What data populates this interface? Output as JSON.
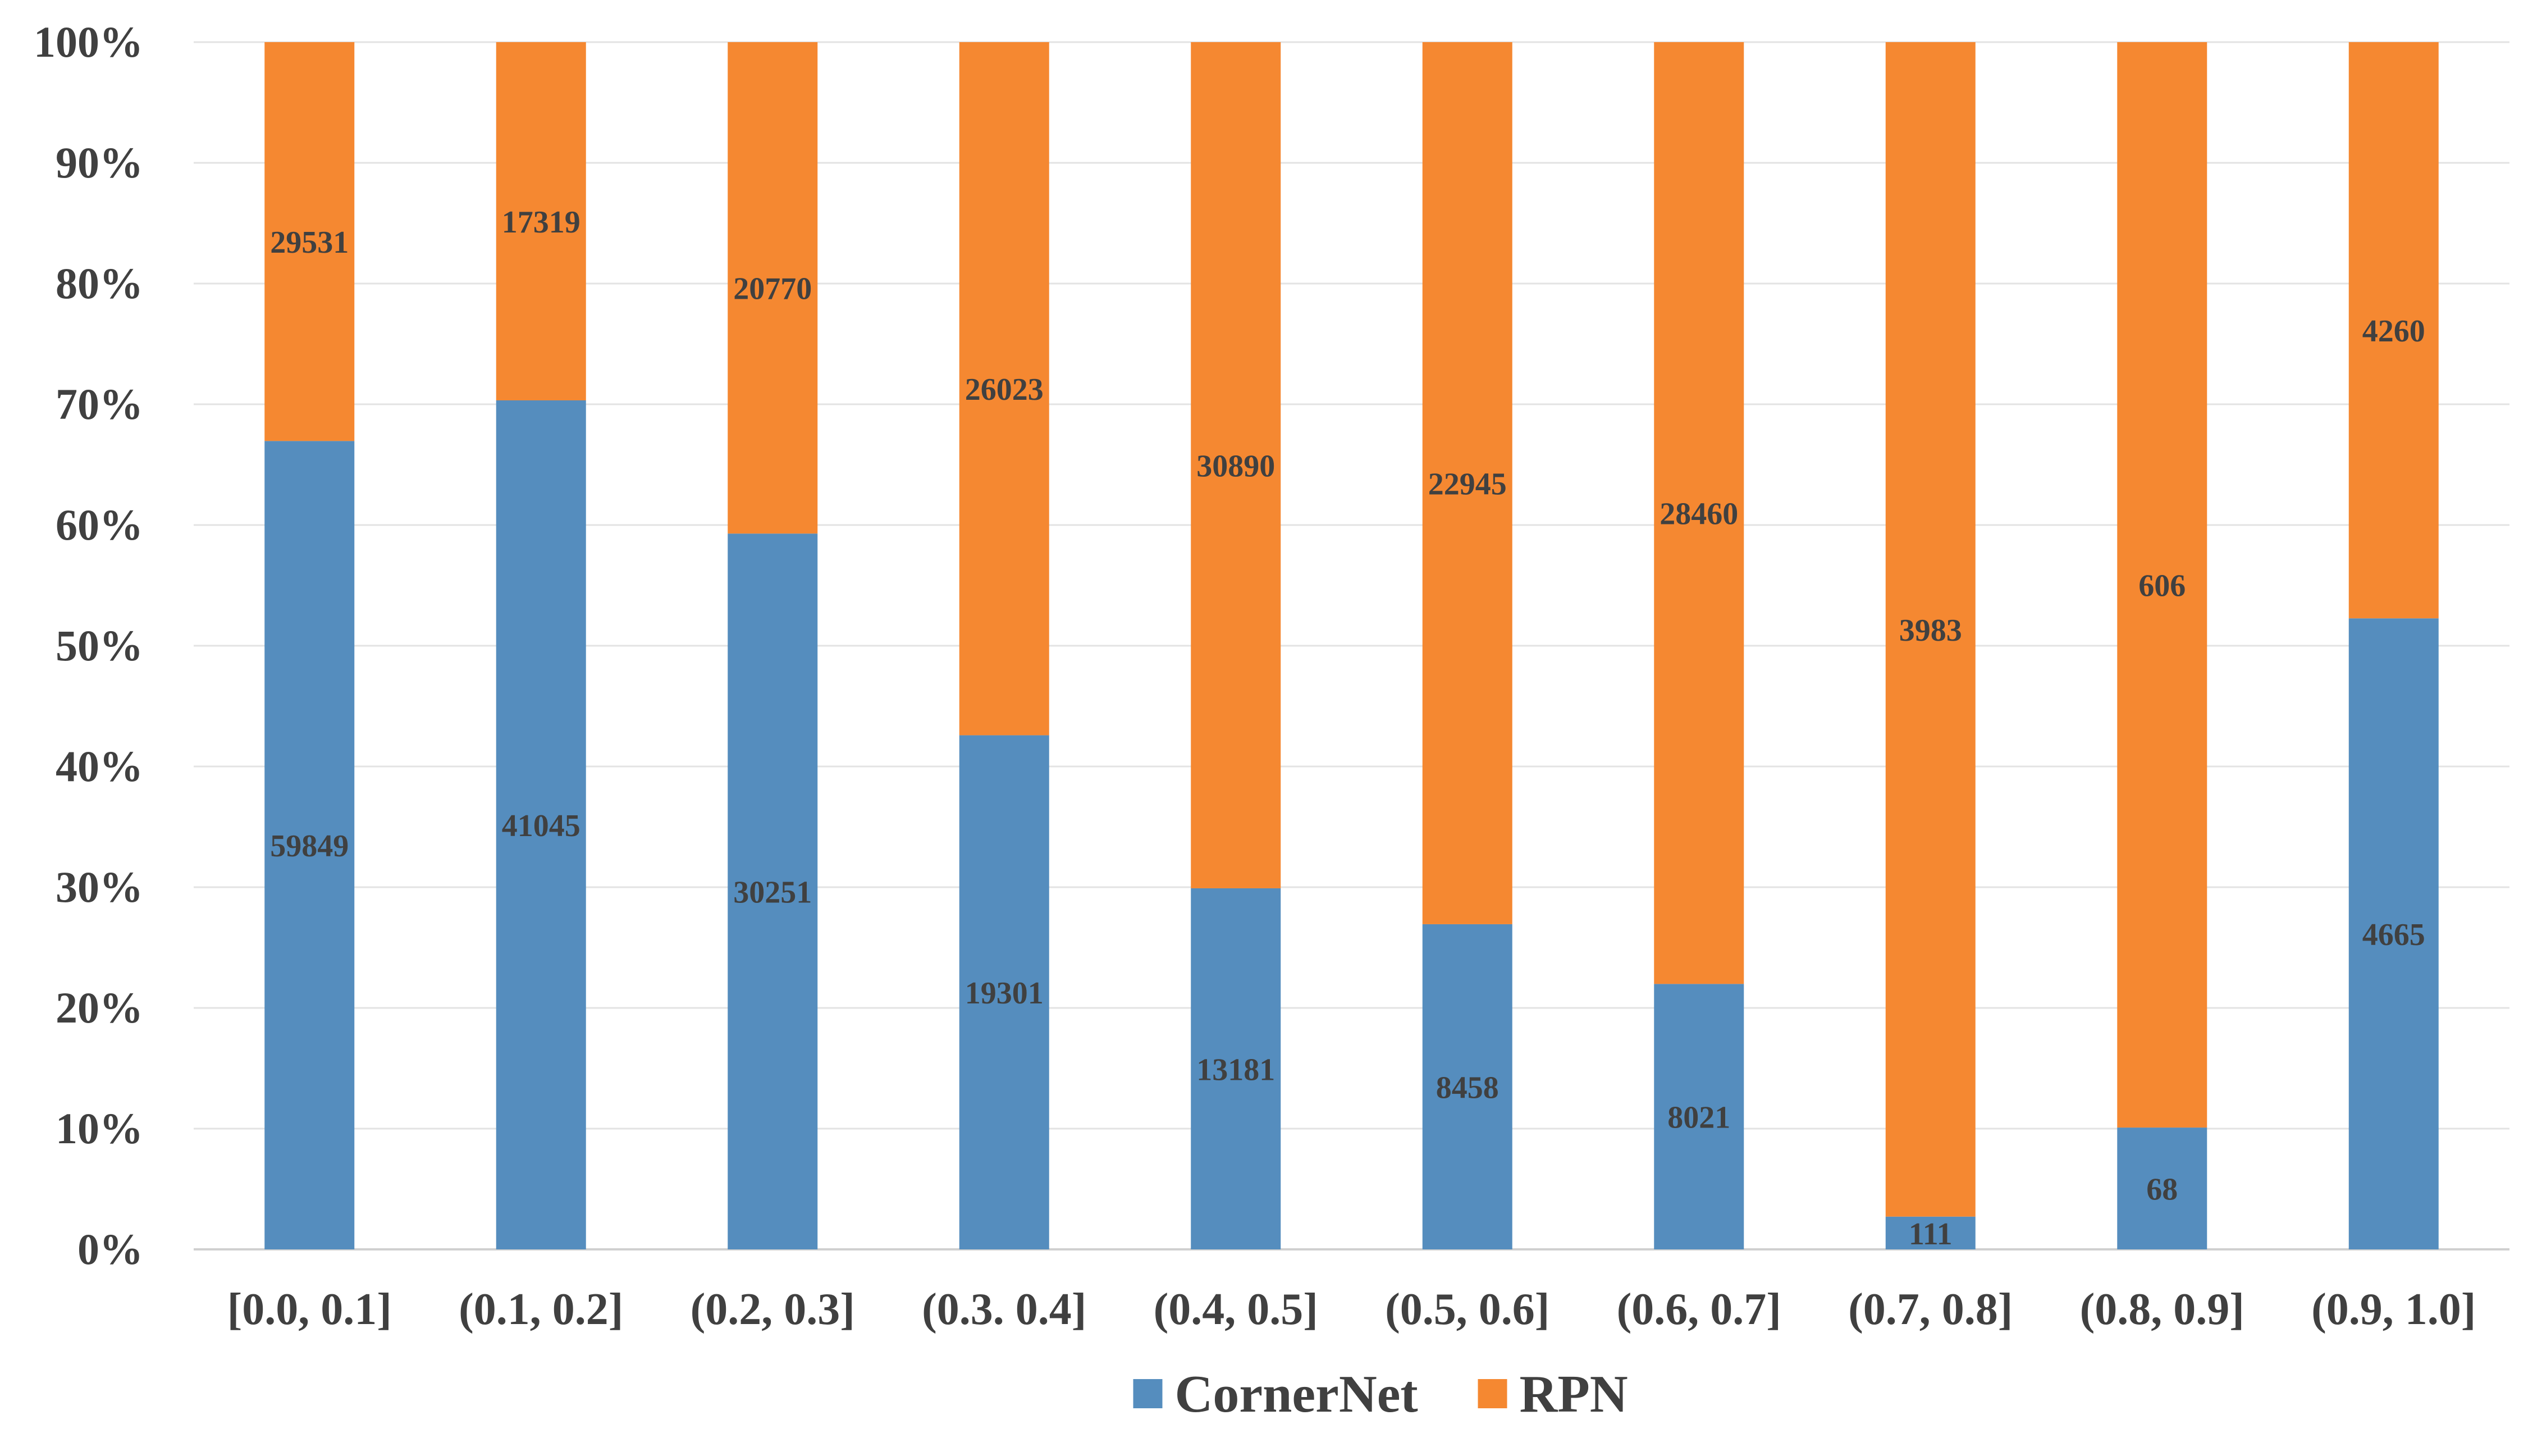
{
  "chart_data": {
    "type": "bar",
    "stacked": true,
    "normalized": true,
    "categories": [
      "[0.0, 0.1]",
      "(0.1, 0.2]",
      "(0.2, 0.3]",
      "(0.3. 0.4]",
      "(0.4, 0.5]",
      "(0.5, 0.6]",
      "(0.6, 0.7]",
      "(0.7, 0.8]",
      "(0.8, 0.9]",
      "(0.9, 1.0]"
    ],
    "series": [
      {
        "name": "CornerNet",
        "color": "#558DBE",
        "values": [
          59849,
          41045,
          30251,
          19301,
          13181,
          8458,
          8021,
          111,
          68,
          4665
        ]
      },
      {
        "name": "RPN",
        "color": "#F58831",
        "values": [
          29531,
          17319,
          20770,
          26023,
          30890,
          22945,
          28460,
          3983,
          606,
          4260
        ]
      }
    ],
    "y_tick_labels": [
      "0%",
      "10%",
      "20%",
      "30%",
      "40%",
      "50%",
      "60%",
      "70%",
      "80%",
      "90%",
      "100%"
    ],
    "ylim": [
      0,
      100
    ],
    "grid": true,
    "legend_position": "bottom",
    "title": "",
    "xlabel": "",
    "ylabel": ""
  }
}
